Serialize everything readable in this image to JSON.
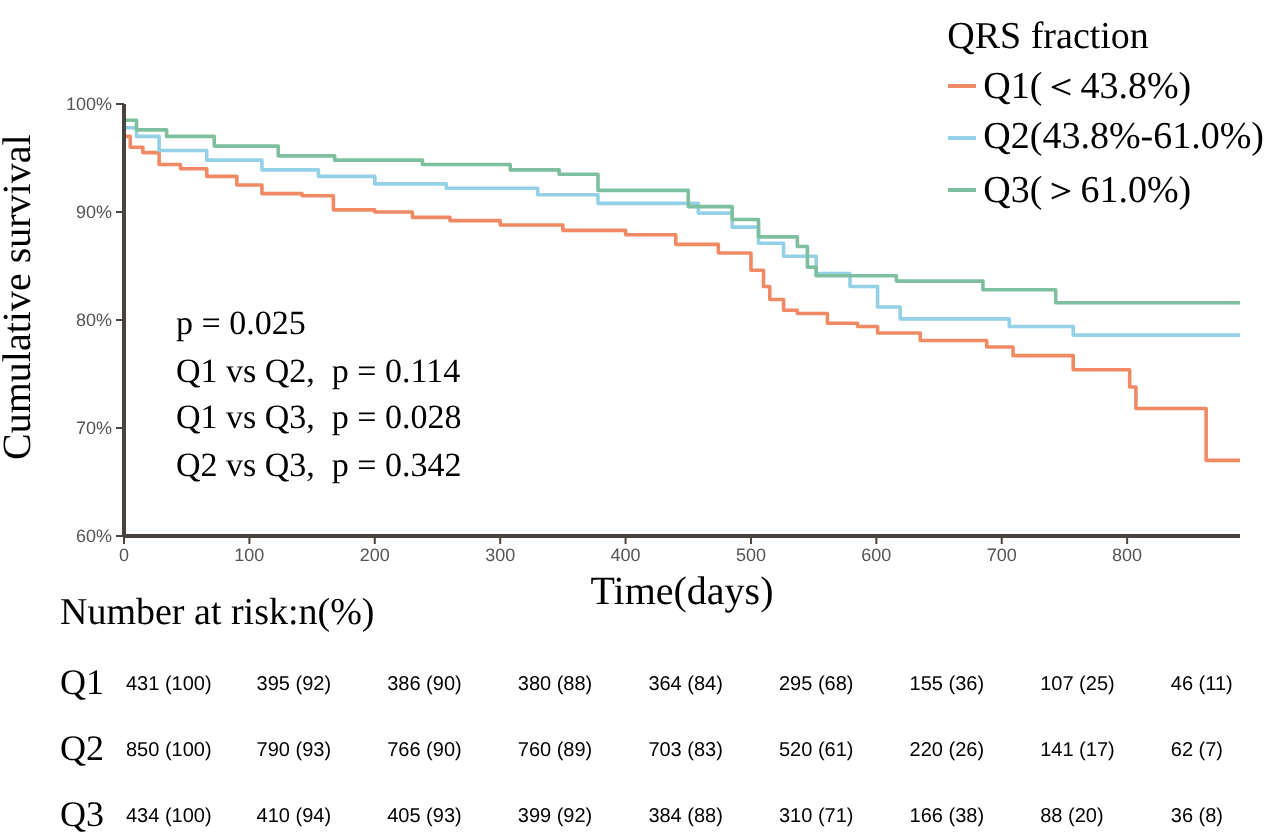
{
  "chart_data": {
    "type": "step",
    "xlabel": "Time(days)",
    "ylabel": "Cumulative survival",
    "legend_title": "QRS fraction",
    "legend": "top right",
    "marker": "none",
    "line_style": "solid",
    "xlim": [
      0,
      890
    ],
    "xticks": [
      0,
      100,
      200,
      300,
      400,
      500,
      600,
      700,
      800
    ],
    "ylim": [
      60,
      100
    ],
    "yticks": [
      {
        "value": 60,
        "label": "60%"
      },
      {
        "value": 70,
        "label": "70%"
      },
      {
        "value": 80,
        "label": "80%"
      },
      {
        "value": 90,
        "label": "90%"
      },
      {
        "value": 100,
        "label": "100%"
      }
    ],
    "series": [
      {
        "name": "Q1(＜43.8%)",
        "color": "#f08a65",
        "x": [
          0,
          5,
          15,
          28,
          45,
          66,
          90,
          110,
          142,
          167,
          200,
          230,
          260,
          300,
          350,
          400,
          440,
          474,
          500,
          510,
          515,
          526,
          537,
          561,
          585,
          601,
          635,
          688,
          709,
          757,
          802,
          807,
          863,
          890
        ],
        "values": [
          97,
          96,
          95.5,
          94.4,
          94,
          93.3,
          92.5,
          91.7,
          91.5,
          90.2,
          90,
          89.5,
          89.2,
          88.8,
          88.3,
          87.9,
          87,
          86.2,
          84.6,
          83.1,
          81.9,
          80.9,
          80.6,
          79.7,
          79.4,
          78.8,
          78.1,
          77.5,
          76.7,
          75.4,
          73.8,
          71.8,
          67,
          67
        ]
      },
      {
        "name": "Q2(43.8%-61.0%)",
        "color": "#94d0e6",
        "x": [
          0,
          10,
          28,
          66,
          110,
          155,
          200,
          257,
          330,
          378,
          458,
          485,
          506,
          526,
          552,
          579,
          601,
          619,
          706,
          757,
          890
        ],
        "values": [
          97.8,
          97,
          95.7,
          94.8,
          93.9,
          93.3,
          92.6,
          92.2,
          91.6,
          90.8,
          89.9,
          88.6,
          87.1,
          85.9,
          84.3,
          83.1,
          81.2,
          80.1,
          79.4,
          78.6,
          78.6
        ]
      },
      {
        "name": "Q3(＞61.0%)",
        "color": "#7dbf9e",
        "x": [
          0,
          10,
          34,
          72,
          123,
          168,
          238,
          308,
          347,
          378,
          450,
          485,
          506,
          537,
          545,
          552,
          616,
          685,
          743,
          890
        ],
        "values": [
          98.5,
          97.6,
          97,
          96.1,
          95.2,
          94.8,
          94.4,
          93.9,
          93.5,
          92,
          90.5,
          89.3,
          87.7,
          86.8,
          84.9,
          84.1,
          83.6,
          82.8,
          81.6,
          81.6
        ]
      }
    ],
    "annotations": [
      "p = 0.025",
      "Q1 vs Q2,  p = 0.114",
      "Q1 vs Q3,  p = 0.028",
      "Q2 vs Q3,  p = 0.342",
      "Number at risk:n(%)",
      "Q1",
      "431 (100)",
      "395 (92)",
      "386 (90)",
      "380 (88)",
      "364 (84)",
      "295 (68)",
      "155 (36)",
      "107 (25)",
      "46 (11)",
      "Q2",
      "850 (100)",
      "790 (93)",
      "766 (90)",
      "760 (89)",
      "703 (83)",
      "520 (61)",
      "220 (26)",
      "141 (17)",
      "62 (7)",
      "Q3",
      "434 (100)",
      "410 (94)",
      "405 (93)",
      "399 (92)",
      "384 (88)",
      "310 (71)",
      "166 (38)",
      "88 (20)",
      "36 (8)"
    ]
  }
}
